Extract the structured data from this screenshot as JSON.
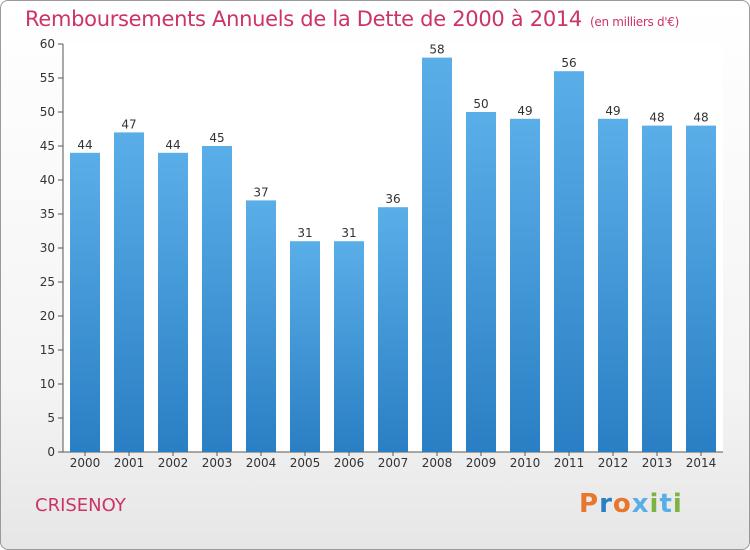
{
  "title": "Remboursements Annuels de la Dette de 2000 à 2014",
  "subtitle": "(en milliers d'€)",
  "commune": "CRISENOY",
  "logo": "Proxiti",
  "colors": {
    "accent": "#cc3366",
    "bar_light": "#5aaee8",
    "bar_dark": "#2a7fc4",
    "logo_letters": [
      "#e8762c",
      "#2a7fc4",
      "#e8762c",
      "#5aaee8",
      "#7cb342",
      "#5aaee8",
      "#7cb342"
    ]
  },
  "chart_data": {
    "type": "bar",
    "title": "Remboursements Annuels de la Dette de 2000 à 2014",
    "subtitle": "(en milliers d'€)",
    "xlabel": "",
    "ylabel": "",
    "categories": [
      "2000",
      "2001",
      "2002",
      "2003",
      "2004",
      "2005",
      "2006",
      "2007",
      "2008",
      "2009",
      "2010",
      "2011",
      "2012",
      "2013",
      "2014"
    ],
    "values": [
      44,
      47,
      44,
      45,
      37,
      31,
      31,
      36,
      58,
      50,
      49,
      56,
      49,
      48,
      48
    ],
    "ylim": [
      0,
      60
    ],
    "yticks": [
      0,
      5,
      10,
      15,
      20,
      25,
      30,
      35,
      40,
      45,
      50,
      55,
      60
    ],
    "grid": false,
    "legend": "none"
  }
}
